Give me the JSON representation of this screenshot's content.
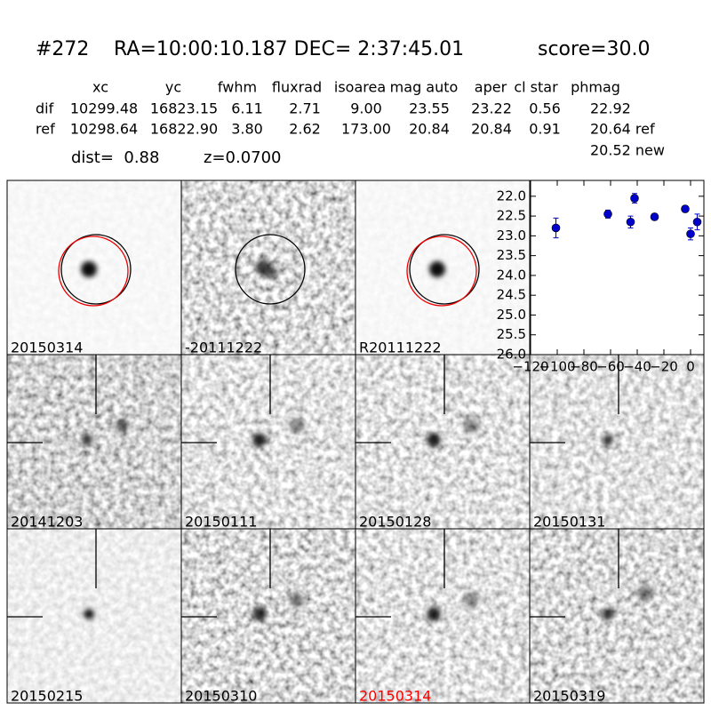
{
  "header": {
    "id": "#272",
    "coords": "RA=10:00:10.187 DEC= 2:37:45.01",
    "score": "score=30.0"
  },
  "table": {
    "columns": [
      "xc",
      "yc",
      "fwhm",
      "fluxrad",
      "isoarea",
      "mag auto",
      "aper",
      "cl star",
      "phmag"
    ],
    "rows": [
      [
        "dif",
        "10299.48",
        "16823.15",
        "6.11",
        "2.71",
        "9.00",
        "23.55",
        "23.22",
        "0.56",
        "22.92"
      ],
      [
        "ref",
        "10298.64",
        "16822.90",
        "3.80",
        "2.62",
        "173.00",
        "20.84",
        "20.84",
        "0.91",
        "20.64 ref"
      ]
    ],
    "extra": "20.52 new"
  },
  "dist": "dist=  0.88",
  "z": "z=0.0700",
  "stamps": [
    "20150314",
    "-20111222",
    "R20111222",
    "20141203",
    "20150111",
    "20150128",
    "20150131",
    "20150215",
    "20150310",
    "20150314",
    "20150319"
  ],
  "chart_data": {
    "type": "scatter",
    "x": [
      -101,
      -62,
      -45,
      -42,
      -27,
      -4,
      0,
      5
    ],
    "series": [
      {
        "color": "#0000cc",
        "values": [
          22.8,
          22.45,
          22.65,
          22.05,
          22.52,
          22.32,
          22.95,
          22.65
        ],
        "errors": [
          0.25,
          0.1,
          0.15,
          0.12,
          0.08,
          0.08,
          0.15,
          0.2
        ]
      }
    ],
    "xlim": [
      -120,
      10
    ],
    "xticks": [
      {
        "value": -120,
        "label": "−120"
      },
      {
        "value": -100,
        "label": "−100"
      },
      {
        "value": -80,
        "label": "−80"
      },
      {
        "value": -60,
        "label": "−60"
      },
      {
        "value": -40,
        "label": "−40"
      },
      {
        "value": -20,
        "label": "−20"
      },
      0
    ],
    "ylim": [
      26.0,
      21.6
    ],
    "yticks": [
      {
        "value": 22,
        "label": "22.0"
      },
      {
        "value": 22.5,
        "label": "22.5"
      },
      {
        "value": 23,
        "label": "23.0"
      },
      {
        "value": 23.5,
        "label": "23.5"
      },
      {
        "value": 24,
        "label": "24.0"
      },
      {
        "value": 24.5,
        "label": "24.5"
      },
      {
        "value": 25,
        "label": "25.0"
      },
      {
        "value": 25.5,
        "label": "25.5"
      },
      {
        "value": 26,
        "label": "26.0"
      }
    ]
  }
}
